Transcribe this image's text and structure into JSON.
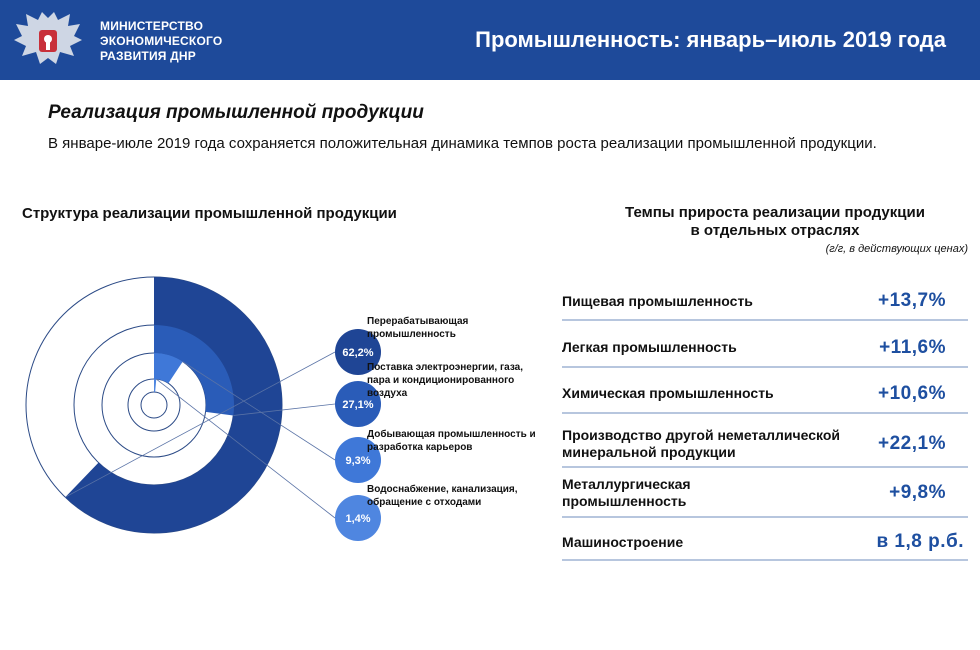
{
  "header": {
    "org_line1": "МИНИСТЕРСТВО",
    "org_line2": "ЭКОНОМИЧЕСКОГО",
    "org_line3": "РАЗВИТИЯ ДНР",
    "title": "Промышленность: январь–июль 2019 года",
    "emblem_icon": "double-headed-eagle-emblem"
  },
  "section": {
    "title": "Реализация промышленной продукции",
    "intro": "В январе-июле 2019 года сохраняется положительная динамика темпов роста реализации промышленной продукции."
  },
  "chart_data": [
    {
      "type": "radial-bar",
      "title": "Структура реализации промышленной продукции",
      "unit": "%",
      "categories": [
        "Перерабатывающая промышленность",
        "Поставка электроэнергии, газа, пара и кондиционированного воздуха",
        "Добывающая промышленность и разработка карьеров",
        "Водоснабжение, канализация, обращение с отходами"
      ],
      "values": [
        62.2,
        27.1,
        9.3,
        1.4
      ],
      "value_labels": [
        "62,2%",
        "27,1%",
        "9,3%",
        "1,4%"
      ],
      "colors": [
        "#1f4595",
        "#2a5cb8",
        "#3f78d8",
        "#4f86e0"
      ]
    },
    {
      "type": "table",
      "title_line1": "Темпы прироста реализации продукции",
      "title_line2": "в отдельных отраслях",
      "subtitle": "(г/г, в действующих ценах)",
      "rows": [
        {
          "label": "Пищевая промышленность",
          "value": "+13,7%"
        },
        {
          "label": "Легкая промышленность",
          "value": "+11,6%"
        },
        {
          "label": "Химическая промышленность",
          "value": "+10,6%"
        },
        {
          "label": "Производство другой неметаллической минеральной продукции",
          "value": "+22,1%"
        },
        {
          "label": "Металлургическая промышленность",
          "value": "+9,8%"
        },
        {
          "label": "Машиностроение",
          "value": "в 1,8 р.б."
        }
      ]
    }
  ]
}
